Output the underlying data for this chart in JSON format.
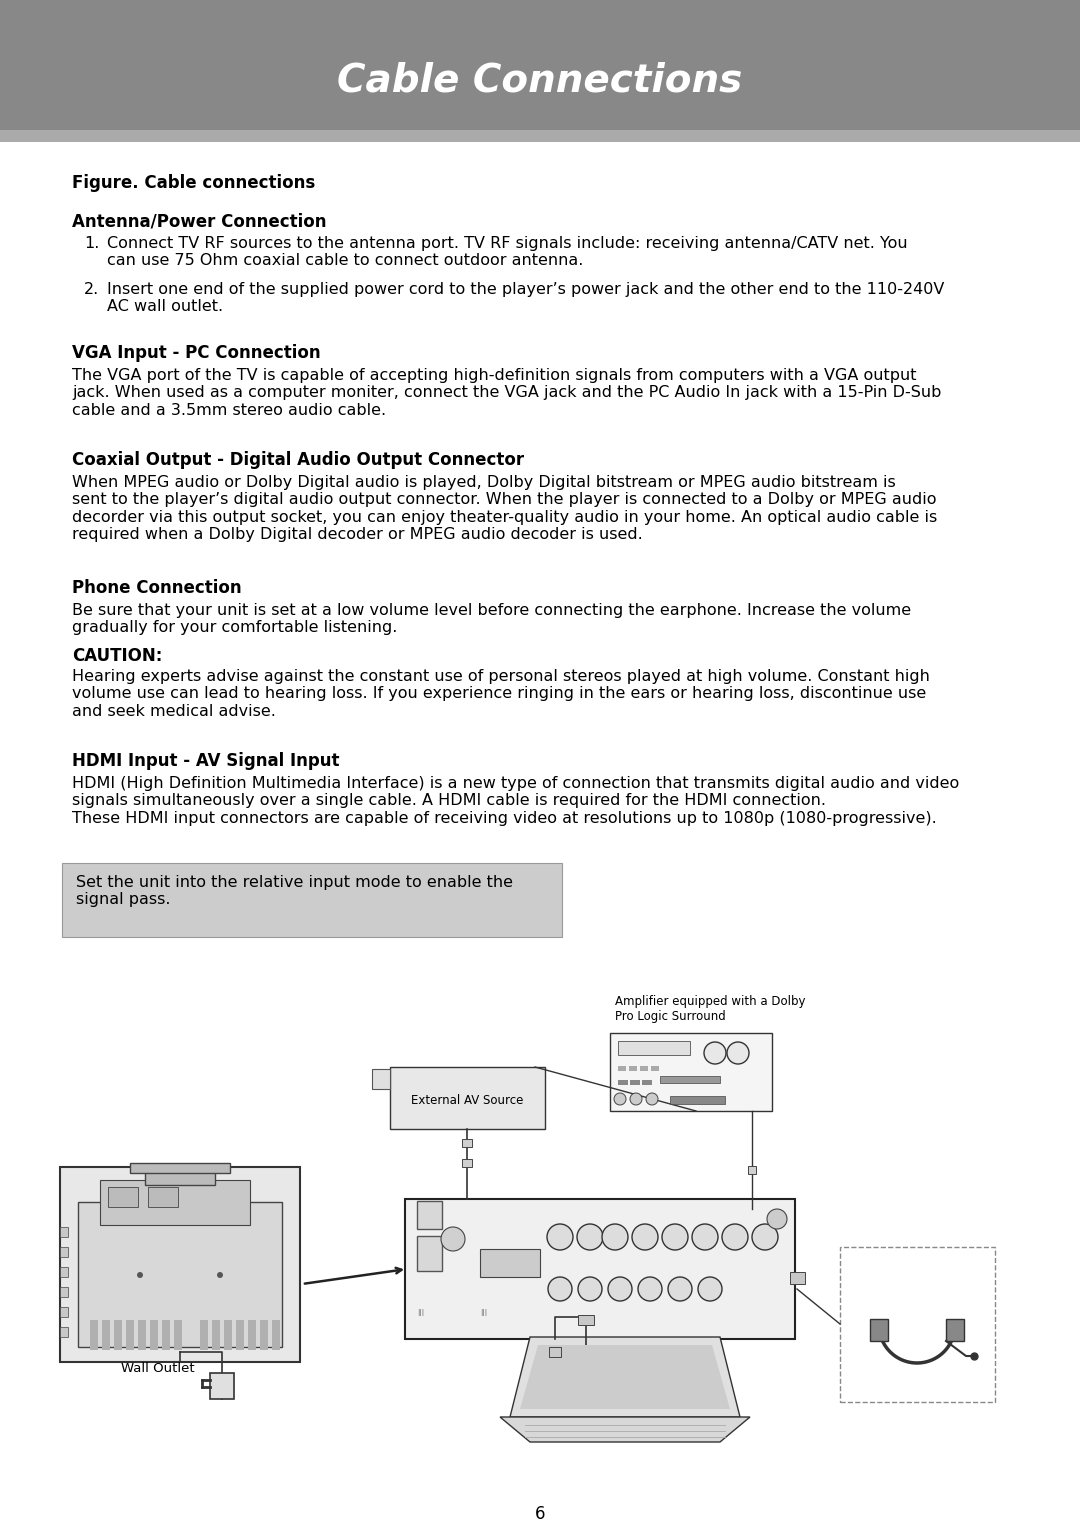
{
  "header_bg_color": "#888888",
  "header_text": "Cable Connections",
  "header_text_color": "#ffffff",
  "body_bg_color": "#ffffff",
  "body_text_color": "#000000",
  "page_number": "6",
  "figure_caption": "Figure. Cable connections",
  "sections": [
    {
      "heading": "Antenna/Power Connection",
      "type": "list",
      "items": [
        "Connect TV RF sources to the antenna port. TV RF signals include: receiving antenna/CATV net. You\ncan use 75 Ohm coaxial cable to connect outdoor antenna.",
        "Insert one end of the supplied power cord to the player’s power jack and the other end to the 110-240V\nAC wall outlet."
      ]
    },
    {
      "heading": "VGA Input - PC Connection",
      "type": "paragraph",
      "text": "The VGA port of the TV is capable of accepting high-definition signals from computers with a VGA output\njack. When used as a computer moniter, connect the VGA jack and the PC Audio In jack with a 15-Pin D-Sub\ncable and a 3.5mm stereo audio cable."
    },
    {
      "heading": "Coaxial Output - Digital Audio Output Connector",
      "type": "paragraph",
      "text": "When MPEG audio or Dolby Digital audio is played, Dolby Digital bitstream or MPEG audio bitstream is\nsent to the player’s digital audio output connector. When the player is connected to a Dolby or MPEG audio\ndecorder via this output socket, you can enjoy theater-quality audio in your home. An optical audio cable is\nrequired when a Dolby Digital decoder or MPEG audio decoder is used."
    },
    {
      "heading": "Phone Connection",
      "type": "mixed",
      "text": "Be sure that your unit is set at a low volume level before connecting the earphone. Increase the volume\ngradually for your comfortable listening.",
      "caution_heading": "CAUTION:",
      "caution_text": "Hearing experts advise against the constant use of personal stereos played at high volume. Constant high\nvolume use can lead to hearing loss. If you experience ringing in the ears or hearing loss, discontinue use\nand seek medical advise."
    },
    {
      "heading": "HDMI Input - AV Signal Input",
      "type": "paragraph",
      "text": "HDMI (High Definition Multimedia Interface) is a new type of connection that transmits digital audio and video\nsignals simultaneously over a single cable. A HDMI cable is required for the HDMI connection.\nThese HDMI input connectors are capable of receiving video at resolutions up to 1080p (1080-progressive)."
    }
  ],
  "note_box_text": "Set the unit into the relative input mode to enable the\nsignal pass.",
  "note_box_bg": "#cccccc",
  "diagram_labels": {
    "amplifier": "Amplifier equipped with a Dolby\nPro Logic Surround",
    "external_av": "External AV Source",
    "wall_outlet": "Wall Outlet"
  }
}
